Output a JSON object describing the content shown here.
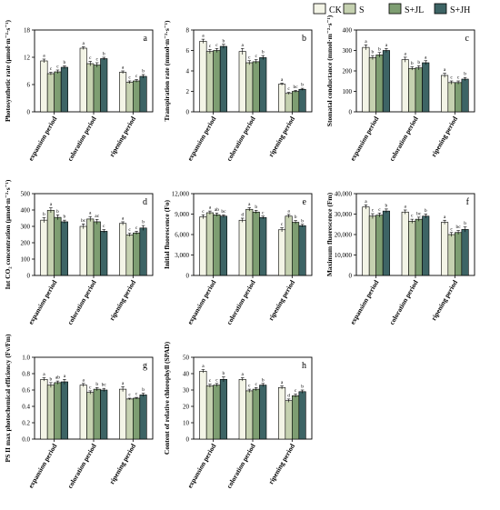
{
  "legend": [
    {
      "name": "CK",
      "color": "#f3f4e6"
    },
    {
      "name": "S",
      "color": "#c5d1b0"
    },
    {
      "name": "S+JL",
      "color": "#7e9e72"
    },
    {
      "name": "S+JH",
      "color": "#3d6465"
    }
  ],
  "chart_data": [
    {
      "type": "bar",
      "panel": "a",
      "ylabel": "Photosynthetic rate (μmol·m⁻²·s⁻¹)",
      "categories": [
        "expansion period",
        "coloration period",
        "ripening period"
      ],
      "ylim": [
        0,
        18
      ],
      "yticks": [
        "0",
        "6",
        "12",
        "18"
      ],
      "series": [
        {
          "name": "CK",
          "values": [
            11.2,
            14.0,
            8.7
          ],
          "errors": [
            0.4,
            0.3,
            0.3
          ],
          "letters": [
            "a",
            "a",
            "a"
          ]
        },
        {
          "name": "S",
          "values": [
            8.4,
            10.6,
            6.5
          ],
          "errors": [
            0.3,
            0.5,
            0.3
          ],
          "letters": [
            "c",
            "c",
            "c"
          ]
        },
        {
          "name": "S+JL",
          "values": [
            8.8,
            10.3,
            6.8
          ],
          "errors": [
            0.4,
            0.5,
            0.3
          ],
          "letters": [
            "c",
            "c",
            "c"
          ]
        },
        {
          "name": "S+JH",
          "values": [
            9.8,
            11.7,
            7.8
          ],
          "errors": [
            0.3,
            0.3,
            0.4
          ],
          "letters": [
            "b",
            "b",
            "b"
          ]
        }
      ]
    },
    {
      "type": "bar",
      "panel": "b",
      "ylabel": "Transpiration rate (mmol·m⁻²·s⁻¹)",
      "categories": [
        "expansion period",
        "coloration period",
        "ripening period"
      ],
      "ylim": [
        0,
        8
      ],
      "yticks": [
        "0",
        "2",
        "4",
        "6",
        "8"
      ],
      "series": [
        {
          "name": "CK",
          "values": [
            6.9,
            5.9,
            2.7
          ],
          "errors": [
            0.2,
            0.3,
            0.1
          ],
          "letters": [
            "a",
            "a",
            "a"
          ]
        },
        {
          "name": "S",
          "values": [
            5.9,
            4.8,
            1.8
          ],
          "errors": [
            0.2,
            0.2,
            0.1
          ],
          "letters": [
            "c",
            "c",
            "c"
          ]
        },
        {
          "name": "S+JL",
          "values": [
            6.0,
            4.9,
            2.0
          ],
          "errors": [
            0.2,
            0.2,
            0.1
          ],
          "letters": [
            "c",
            "c",
            "bc"
          ]
        },
        {
          "name": "S+JH",
          "values": [
            6.4,
            5.3,
            2.2
          ],
          "errors": [
            0.2,
            0.2,
            0.1
          ],
          "letters": [
            "b",
            "b",
            "b"
          ]
        }
      ]
    },
    {
      "type": "bar",
      "panel": "c",
      "ylabel": "Stomatal conductance (mmol·m⁻²·s⁻¹)",
      "categories": [
        "expansion period",
        "coloration period",
        "ripening period"
      ],
      "ylim": [
        0,
        400
      ],
      "yticks": [
        "0",
        "100",
        "200",
        "300",
        "400"
      ],
      "series": [
        {
          "name": "CK",
          "values": [
            315,
            255,
            178
          ],
          "errors": [
            12,
            12,
            10
          ],
          "letters": [
            "a",
            "a",
            "a"
          ]
        },
        {
          "name": "S",
          "values": [
            265,
            212,
            143
          ],
          "errors": [
            10,
            8,
            8
          ],
          "letters": [
            "b",
            "b",
            "c"
          ]
        },
        {
          "name": "S+JL",
          "values": [
            278,
            215,
            143
          ],
          "errors": [
            12,
            10,
            8
          ],
          "letters": [
            "b",
            "b",
            "c"
          ]
        },
        {
          "name": "S+JH",
          "values": [
            300,
            240,
            160
          ],
          "errors": [
            10,
            10,
            8
          ],
          "letters": [
            "a",
            "a",
            "b"
          ]
        }
      ]
    },
    {
      "type": "bar",
      "panel": "d",
      "ylabel": "Int CO₂ concentration (μmol·m⁻²·s⁻¹)",
      "categories": [
        "expansion period",
        "coloration period",
        "ripening period"
      ],
      "ylim": [
        0,
        500
      ],
      "yticks": [
        "0",
        "100",
        "200",
        "300",
        "400",
        "500"
      ],
      "series": [
        {
          "name": "CK",
          "values": [
            338,
            300,
            318
          ],
          "errors": [
            15,
            15,
            10
          ],
          "letters": [
            "b",
            "bc",
            "a"
          ]
        },
        {
          "name": "S",
          "values": [
            398,
            345,
            248
          ],
          "errors": [
            15,
            15,
            10
          ],
          "letters": [
            "a",
            "a",
            "c"
          ]
        },
        {
          "name": "S+JL",
          "values": [
            355,
            328,
            260
          ],
          "errors": [
            15,
            15,
            10
          ],
          "letters": [
            "b",
            "ac",
            "c"
          ]
        },
        {
          "name": "S+JH",
          "values": [
            328,
            270,
            290
          ],
          "errors": [
            10,
            10,
            15
          ],
          "letters": [
            "b",
            "c",
            "b"
          ]
        }
      ]
    },
    {
      "type": "bar",
      "panel": "e",
      "ylabel": "Initial fluorescence (Fo)",
      "categories": [
        "expansion period",
        "coloration period",
        "ripening period"
      ],
      "ylim": [
        0,
        12000
      ],
      "yticks": [
        "0",
        "3,000",
        "6,000",
        "9,000",
        "12,000"
      ],
      "series": [
        {
          "name": "CK",
          "values": [
            8600,
            8100,
            6700
          ],
          "errors": [
            300,
            300,
            300
          ],
          "letters": [
            "c",
            "d",
            "c"
          ]
        },
        {
          "name": "S",
          "values": [
            9200,
            9700,
            8700
          ],
          "errors": [
            250,
            250,
            250
          ],
          "letters": [
            "a",
            "a",
            "a"
          ]
        },
        {
          "name": "S+JL",
          "values": [
            8900,
            9300,
            7800
          ],
          "errors": [
            250,
            250,
            250
          ],
          "letters": [
            "ab",
            "b",
            "b"
          ]
        },
        {
          "name": "S+JH",
          "values": [
            8700,
            8500,
            7300
          ],
          "errors": [
            200,
            200,
            200
          ],
          "letters": [
            "bc",
            "c",
            "b"
          ]
        }
      ]
    },
    {
      "type": "bar",
      "panel": "f",
      "ylabel": "Maximum fluorescence (Fm)",
      "categories": [
        "expansion period",
        "coloration period",
        "ripening period"
      ],
      "ylim": [
        0,
        40000
      ],
      "yticks": [
        "0",
        "10,000",
        "20,000",
        "30,000",
        "40,000"
      ],
      "series": [
        {
          "name": "CK",
          "values": [
            33500,
            31000,
            26000
          ],
          "errors": [
            1000,
            1000,
            1000
          ],
          "letters": [
            "a",
            "a",
            "a"
          ]
        },
        {
          "name": "S",
          "values": [
            29000,
            26500,
            20000
          ],
          "errors": [
            1200,
            1000,
            1000
          ],
          "letters": [
            "c",
            "c",
            "c"
          ]
        },
        {
          "name": "S+JL",
          "values": [
            29500,
            27500,
            21000
          ],
          "errors": [
            1000,
            1000,
            1000
          ],
          "letters": [
            "c",
            "bc",
            "bc"
          ]
        },
        {
          "name": "S+JH",
          "values": [
            31500,
            29000,
            22500
          ],
          "errors": [
            1000,
            1000,
            1200
          ],
          "letters": [
            "b",
            "b",
            "b"
          ]
        }
      ]
    },
    {
      "type": "bar",
      "panel": "g",
      "ylabel": "PS II max photochemical efficiency (Fv/Fm)",
      "categories": [
        "expansion period",
        "coloration period",
        "ripening period"
      ],
      "ylim": [
        0,
        1.0
      ],
      "yticks": [
        "0.0",
        "0.2",
        "0.4",
        "0.6",
        "0.8",
        "1.0"
      ],
      "series": [
        {
          "name": "CK",
          "values": [
            0.73,
            0.66,
            0.61
          ],
          "errors": [
            0.02,
            0.02,
            0.03
          ],
          "letters": [
            "a",
            "a",
            "a"
          ]
        },
        {
          "name": "S",
          "values": [
            0.66,
            0.57,
            0.49
          ],
          "errors": [
            0.03,
            0.02,
            0.01
          ],
          "letters": [
            "b",
            "c",
            "c"
          ]
        },
        {
          "name": "S+JL",
          "values": [
            0.69,
            0.61,
            0.5
          ],
          "errors": [
            0.02,
            0.02,
            0.01
          ],
          "letters": [
            "ab",
            "b",
            "c"
          ]
        },
        {
          "name": "S+JH",
          "values": [
            0.7,
            0.6,
            0.54
          ],
          "errors": [
            0.03,
            0.02,
            0.02
          ],
          "letters": [
            "a",
            "bc",
            "b"
          ]
        }
      ]
    },
    {
      "type": "bar",
      "panel": "h",
      "ylabel": "Content of relative chlorophyll (SPAD)",
      "categories": [
        "expansion period",
        "coloration period",
        "ripening period"
      ],
      "ylim": [
        0,
        50
      ],
      "yticks": [
        "0",
        "10",
        "20",
        "30",
        "40",
        "50"
      ],
      "series": [
        {
          "name": "CK",
          "values": [
            41.5,
            36.5,
            31.5
          ],
          "errors": [
            1.0,
            1.0,
            1.0
          ],
          "letters": [
            "a",
            "a",
            "a"
          ]
        },
        {
          "name": "S",
          "values": [
            32.5,
            29.5,
            23.5
          ],
          "errors": [
            1.0,
            1.0,
            1.0
          ],
          "letters": [
            "c",
            "c",
            "d"
          ]
        },
        {
          "name": "S+JL",
          "values": [
            33.0,
            30.5,
            26.5
          ],
          "errors": [
            1.0,
            1.0,
            1.0
          ],
          "letters": [
            "c",
            "c",
            "c"
          ]
        },
        {
          "name": "S+JH",
          "values": [
            36.5,
            33.0,
            29.0
          ],
          "errors": [
            1.5,
            1.0,
            1.0
          ],
          "letters": [
            "b",
            "b",
            "b"
          ]
        }
      ]
    }
  ]
}
